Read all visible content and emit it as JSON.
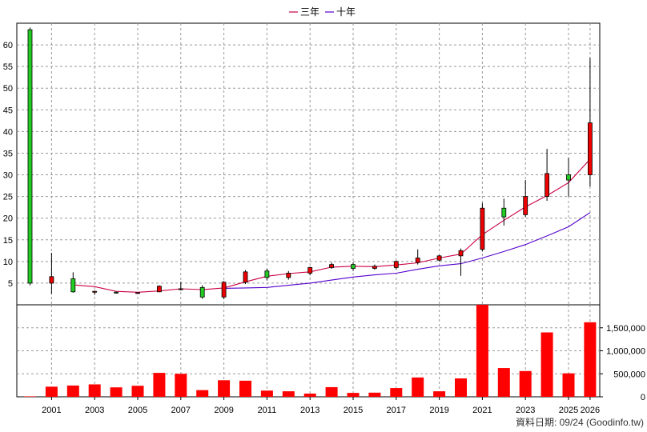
{
  "legend": [
    {
      "label": "三年",
      "color": "#cc0044"
    },
    {
      "label": "十年",
      "color": "#5500cc"
    }
  ],
  "source_note": "資料日期: 09/24  (Goodinfo.tw)",
  "colors": {
    "up": "#ee0000",
    "down": "#22cc22",
    "volume": "#ff0000",
    "grid": "#999999"
  },
  "chart_data": [
    {
      "type": "candlestick",
      "ylim": [
        0,
        65
      ],
      "yticks": [
        5,
        10,
        15,
        20,
        25,
        30,
        35,
        40,
        45,
        50,
        55,
        60
      ],
      "xticks": [
        "2001",
        "2003",
        "2005",
        "2007",
        "2009",
        "2011",
        "2013",
        "2015",
        "2017",
        "2019",
        "2021",
        "2023",
        "2025",
        "2026"
      ],
      "xtick_years": [
        2001,
        2003,
        2005,
        2007,
        2009,
        2011,
        2013,
        2015,
        2017,
        2019,
        2021,
        2023,
        2025,
        2026
      ],
      "grid": true,
      "candles": [
        {
          "year": 2000,
          "open": 63.5,
          "high": 64,
          "low": 4.5,
          "close": 5
        },
        {
          "year": 2001,
          "open": 5,
          "high": 12,
          "low": 2.5,
          "close": 6.5
        },
        {
          "year": 2002,
          "open": 6,
          "high": 7.5,
          "low": 2.8,
          "close": 3
        },
        {
          "year": 2003,
          "open": 2.9,
          "high": 3.3,
          "low": 2.3,
          "close": 3.1
        },
        {
          "year": 2004,
          "open": 2.9,
          "high": 3.1,
          "low": 2.6,
          "close": 2.7
        },
        {
          "year": 2005,
          "open": 2.7,
          "high": 2.9,
          "low": 2.6,
          "close": 2.8
        },
        {
          "year": 2006,
          "open": 3,
          "high": 4.5,
          "low": 2.9,
          "close": 4.3
        },
        {
          "year": 2007,
          "open": 3.5,
          "high": 5.3,
          "low": 3.3,
          "close": 3.7
        },
        {
          "year": 2008,
          "open": 4,
          "high": 4.5,
          "low": 1.4,
          "close": 1.8
        },
        {
          "year": 2009,
          "open": 1.8,
          "high": 5.5,
          "low": 1.3,
          "close": 5.2
        },
        {
          "year": 2010,
          "open": 5.2,
          "high": 8,
          "low": 4.8,
          "close": 7.6
        },
        {
          "year": 2011,
          "open": 7.8,
          "high": 8.3,
          "low": 5.6,
          "close": 6.3
        },
        {
          "year": 2012,
          "open": 6.3,
          "high": 7.8,
          "low": 5.8,
          "close": 7.3
        },
        {
          "year": 2013,
          "open": 7.3,
          "high": 8.8,
          "low": 6.8,
          "close": 8.6
        },
        {
          "year": 2014,
          "open": 8.6,
          "high": 9.8,
          "low": 8.3,
          "close": 9.3
        },
        {
          "year": 2015,
          "open": 9.3,
          "high": 9.8,
          "low": 7.8,
          "close": 8.4
        },
        {
          "year": 2016,
          "open": 8.4,
          "high": 9.3,
          "low": 8.1,
          "close": 8.9
        },
        {
          "year": 2017,
          "open": 8.6,
          "high": 10.2,
          "low": 8.2,
          "close": 10
        },
        {
          "year": 2018,
          "open": 9.8,
          "high": 12.8,
          "low": 9.3,
          "close": 10.8
        },
        {
          "year": 2019,
          "open": 10.3,
          "high": 11.5,
          "low": 10,
          "close": 11.3
        },
        {
          "year": 2020,
          "open": 11.3,
          "high": 13,
          "low": 6.7,
          "close": 12.5
        },
        {
          "year": 2021,
          "open": 12.8,
          "high": 23.5,
          "low": 12.3,
          "close": 22.3
        },
        {
          "year": 2022,
          "open": 22.3,
          "high": 24.5,
          "low": 18.3,
          "close": 20.3
        },
        {
          "year": 2023,
          "open": 20.8,
          "high": 28.8,
          "low": 20.3,
          "close": 25
        },
        {
          "year": 2024,
          "open": 25,
          "high": 36,
          "low": 24,
          "close": 30.3
        },
        {
          "year": 2025,
          "open": 30,
          "high": 34,
          "low": 25,
          "close": 28.8
        },
        {
          "year": 2026,
          "open": 30,
          "high": 57,
          "low": 27.3,
          "close": 42
        }
      ],
      "series": [
        {
          "name": "三年",
          "years": [
            2002,
            2003,
            2004,
            2005,
            2006,
            2007,
            2008,
            2009,
            2010,
            2011,
            2012,
            2013,
            2014,
            2015,
            2016,
            2017,
            2018,
            2019,
            2020,
            2021,
            2022,
            2023,
            2024,
            2025,
            2026
          ],
          "values": [
            4.6,
            4.2,
            3.1,
            2.9,
            3.2,
            3.7,
            3.5,
            3.9,
            5.3,
            6.6,
            7.2,
            7.6,
            8.7,
            8.9,
            8.8,
            9.2,
            9.7,
            10.8,
            11.7,
            16.2,
            19.5,
            22.6,
            25.2,
            28.2,
            33.6
          ]
        },
        {
          "name": "十年",
          "years": [
            2009,
            2010,
            2011,
            2012,
            2013,
            2014,
            2015,
            2016,
            2017,
            2018,
            2019,
            2020,
            2021,
            2022,
            2023,
            2024,
            2025,
            2026
          ],
          "values": [
            3.8,
            3.9,
            4,
            4.5,
            5,
            5.7,
            6.4,
            6.9,
            7.3,
            8.2,
            9,
            9.5,
            10.8,
            12.3,
            13.9,
            15.9,
            18,
            21.3
          ]
        }
      ]
    },
    {
      "type": "bar",
      "ylim": [
        0,
        2000000
      ],
      "yticks": [
        0,
        500000,
        1000000,
        1500000
      ],
      "ytick_labels": [
        "0",
        "500,000",
        "1,000,000",
        "1,500,000"
      ],
      "categories": [
        2000,
        2001,
        2002,
        2003,
        2004,
        2005,
        2006,
        2007,
        2008,
        2009,
        2010,
        2011,
        2012,
        2013,
        2014,
        2015,
        2016,
        2017,
        2018,
        2019,
        2020,
        2021,
        2022,
        2023,
        2024,
        2025,
        2026
      ],
      "values": [
        10000,
        220000,
        245000,
        270000,
        205000,
        240000,
        520000,
        500000,
        145000,
        360000,
        350000,
        135000,
        120000,
        70000,
        210000,
        85000,
        90000,
        190000,
        420000,
        120000,
        400000,
        2000000,
        625000,
        560000,
        1400000,
        510000,
        1620000
      ]
    }
  ]
}
